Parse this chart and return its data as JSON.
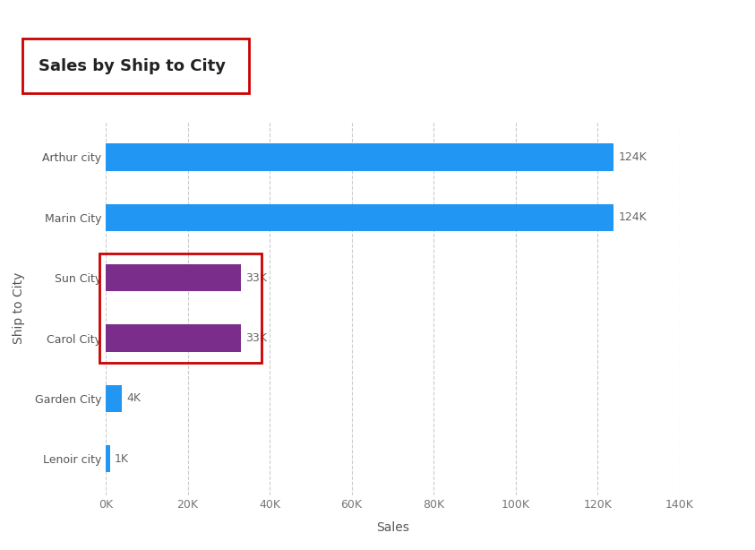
{
  "title": "Sales by Ship to City",
  "categories": [
    "Arthur city",
    "Marin City",
    "Sun City",
    "Carol City",
    "Garden City",
    "Lenoir city"
  ],
  "values": [
    124000,
    124000,
    33000,
    33000,
    4000,
    1000
  ],
  "bar_colors": [
    "#2196F3",
    "#2196F3",
    "#7B2D8B",
    "#7B2D8B",
    "#2196F3",
    "#2196F3"
  ],
  "value_labels": [
    "124K",
    "124K",
    "33K",
    "33K",
    "4K",
    "1K"
  ],
  "xlabel": "Sales",
  "ylabel": "Ship to City",
  "xlim": [
    0,
    140000
  ],
  "xticks": [
    0,
    20000,
    40000,
    60000,
    80000,
    100000,
    120000,
    140000
  ],
  "xtick_labels": [
    "0K",
    "20K",
    "40K",
    "60K",
    "80K",
    "100K",
    "120K",
    "140K"
  ],
  "background_color": "#FFFFFF",
  "grid_color": "#CCCCCC",
  "title_box_color": "#CC0000",
  "highlight_box_color": "#CC0000",
  "highlight_rows": [
    2,
    3
  ],
  "bar_height": 0.45,
  "title_fontsize": 13,
  "axis_label_fontsize": 10,
  "tick_fontsize": 9,
  "value_label_fontsize": 9,
  "value_label_color": "#666666",
  "ytick_color": "#555555",
  "xtick_color": "#777777",
  "title_font_color": "#222222"
}
